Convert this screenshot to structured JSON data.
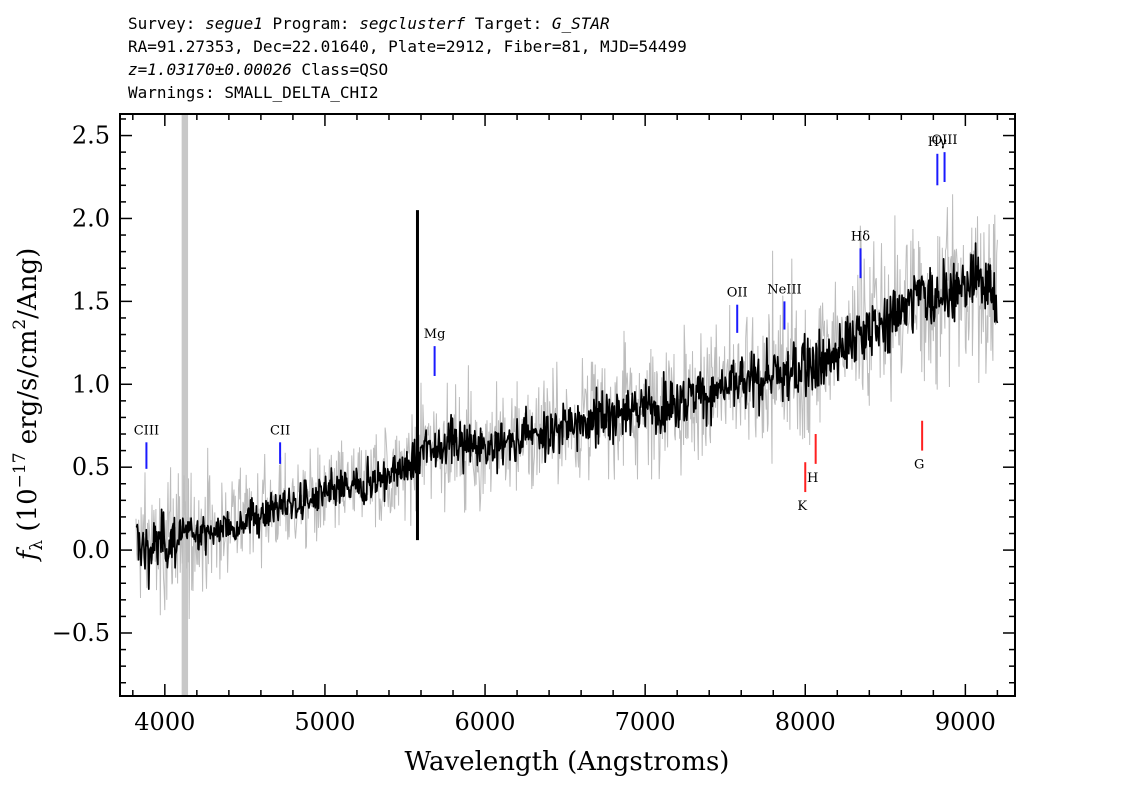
{
  "header": {
    "survey_label": "Survey: ",
    "survey": "segue1",
    "program_label": " Program: ",
    "program": "segclusterf",
    "target_label": " Target: ",
    "target": "G_STAR",
    "line2": "RA=91.27353, Dec=22.01640, Plate=2912, Fiber=81, MJD=54499",
    "redshift": "z=1.03170±0.00026",
    "class_text": " Class=QSO",
    "warnings": "Warnings: SMALL_DELTA_CHI2"
  },
  "chart_data": {
    "type": "line",
    "title": "",
    "xlabel": "Wavelength (Angstroms)",
    "ylabel": "f_λ (10^-17 erg/s/cm^2/Ang)",
    "ylabel_parts": {
      "f": "f",
      "sub": "λ",
      "pre": " (10",
      "exp1": "−17",
      "mid": " erg/s/cm",
      "exp2": "2",
      "post": "/Ang)"
    },
    "xlim": [
      3720,
      9310
    ],
    "ylim": [
      -0.88,
      2.63
    ],
    "x_ticks": [
      4000,
      5000,
      6000,
      7000,
      8000,
      9000
    ],
    "x_tick_labels": [
      "4000",
      "5000",
      "6000",
      "7000",
      "8000",
      "9000"
    ],
    "y_ticks": [
      -0.5,
      0.0,
      0.5,
      1.0,
      1.5,
      2.0,
      2.5
    ],
    "y_tick_labels": [
      "−0.5",
      "0.0",
      "0.5",
      "1.0",
      "1.5",
      "2.0",
      "2.5"
    ],
    "masked_band": [
      4105,
      4145
    ],
    "sky_line_spike": {
      "x": 5578,
      "ymin": 0.06,
      "ymax": 2.05
    },
    "series": [
      {
        "color": "#000000",
        "x": [
          3820,
          3900,
          4000,
          4100,
          4200,
          4300,
          4400,
          4500,
          4600,
          4700,
          4800,
          4900,
          5000,
          5100,
          5200,
          5300,
          5400,
          5500,
          5570,
          5600,
          5700,
          5800,
          5900,
          6000,
          6100,
          6200,
          6300,
          6400,
          6500,
          6600,
          6700,
          6800,
          6900,
          7000,
          7100,
          7200,
          7300,
          7400,
          7500,
          7600,
          7700,
          7800,
          7900,
          8000,
          8100,
          8200,
          8300,
          8400,
          8500,
          8600,
          8700,
          8800,
          8900,
          9000,
          9100,
          9200
        ],
        "values": [
          0.05,
          0.0,
          0.05,
          0.08,
          0.12,
          0.1,
          0.15,
          0.18,
          0.22,
          0.26,
          0.28,
          0.3,
          0.33,
          0.37,
          0.38,
          0.42,
          0.45,
          0.5,
          0.52,
          0.62,
          0.63,
          0.65,
          0.62,
          0.62,
          0.64,
          0.66,
          0.7,
          0.72,
          0.75,
          0.78,
          0.8,
          0.82,
          0.84,
          0.86,
          0.88,
          0.9,
          0.92,
          0.95,
          0.98,
          1.0,
          1.02,
          1.05,
          1.05,
          1.1,
          1.15,
          1.2,
          1.28,
          1.35,
          1.35,
          1.45,
          1.55,
          1.5,
          1.6,
          1.55,
          1.65,
          1.5
        ]
      }
    ],
    "emission_lines": [
      {
        "label": "CIII",
        "x": 3885,
        "color": "#1a1aff",
        "y0": 0.49,
        "y1": 0.65
      },
      {
        "label": "CII",
        "x": 4720,
        "color": "#1a1aff",
        "y0": 0.52,
        "y1": 0.65
      },
      {
        "label": "Mg",
        "x": 5685,
        "color": "#1a1aff",
        "y0": 1.05,
        "y1": 1.23
      },
      {
        "label": "OII",
        "x": 7575,
        "color": "#1a1aff",
        "y0": 1.31,
        "y1": 1.48
      },
      {
        "label": "NeIII",
        "x": 7870,
        "color": "#1a1aff",
        "y0": 1.33,
        "y1": 1.5
      },
      {
        "label": "Hδ",
        "x": 8345,
        "color": "#1a1aff",
        "y0": 1.64,
        "y1": 1.82
      },
      {
        "label": "Hγ",
        "x": 8825,
        "color": "#1a1aff",
        "y0": 2.2,
        "y1": 2.39
      },
      {
        "label": "OIII",
        "x": 8870,
        "color": "#1a1aff",
        "y0": 2.22,
        "y1": 2.4
      }
    ],
    "absorption_lines": [
      {
        "label": "K",
        "x": 8000,
        "color": "#ff2020",
        "y0": 0.35,
        "y1": 0.53
      },
      {
        "label": "H",
        "x": 8065,
        "color": "#ff2020",
        "y0": 0.52,
        "y1": 0.7
      },
      {
        "label": "G",
        "x": 8730,
        "color": "#ff2020",
        "y0": 0.6,
        "y1": 0.78
      }
    ]
  }
}
